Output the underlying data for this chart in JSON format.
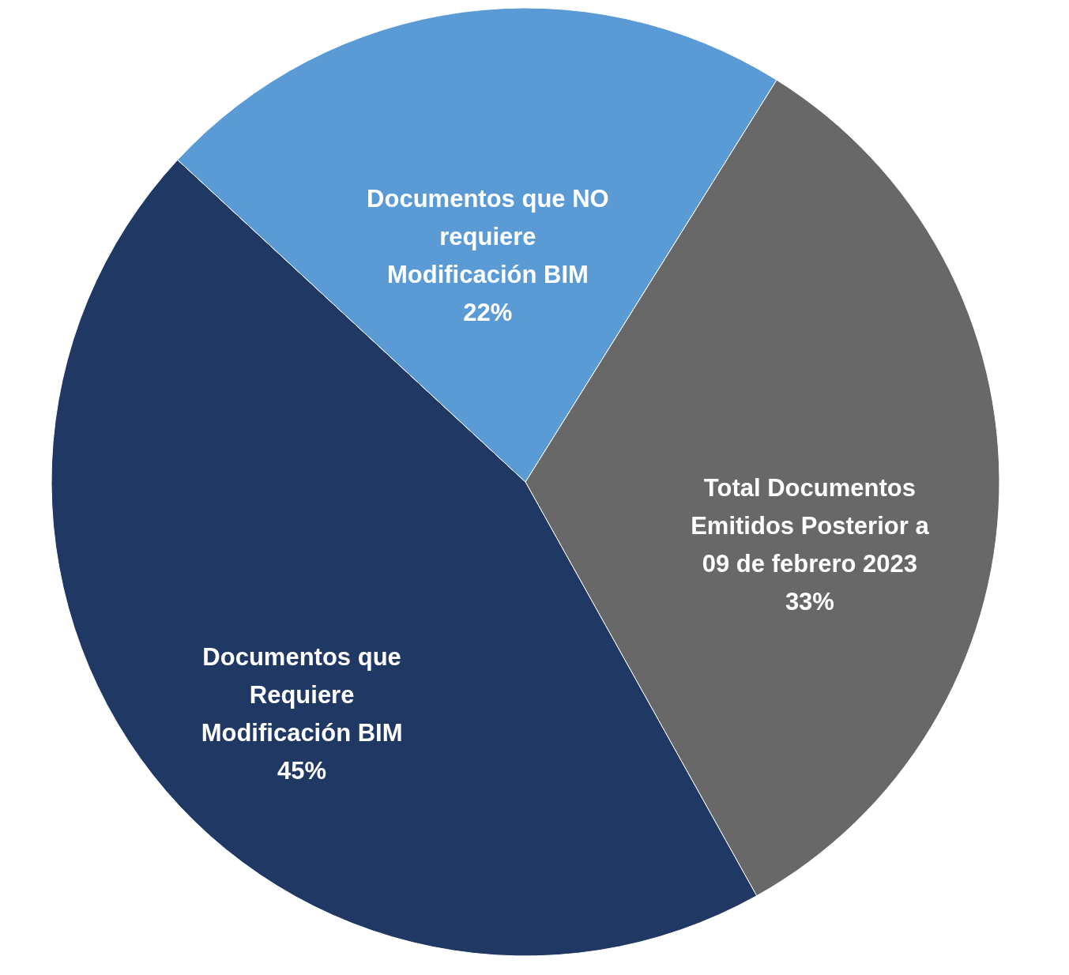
{
  "chart_data": {
    "type": "pie",
    "categories": [
      "Total Documentos\nEmitidos  Posterior a\n09 de febrero 2023",
      "Documentos que\nRequiere\nModificación  BIM",
      "Documentos que NO\nrequiere\nModificación  BIM"
    ],
    "values": [
      33,
      45,
      22
    ],
    "value_labels": [
      "33%",
      "45%",
      "22%"
    ],
    "colors": [
      "#686868",
      "#1f3864",
      "#5b9bd5"
    ],
    "legend": false
  }
}
